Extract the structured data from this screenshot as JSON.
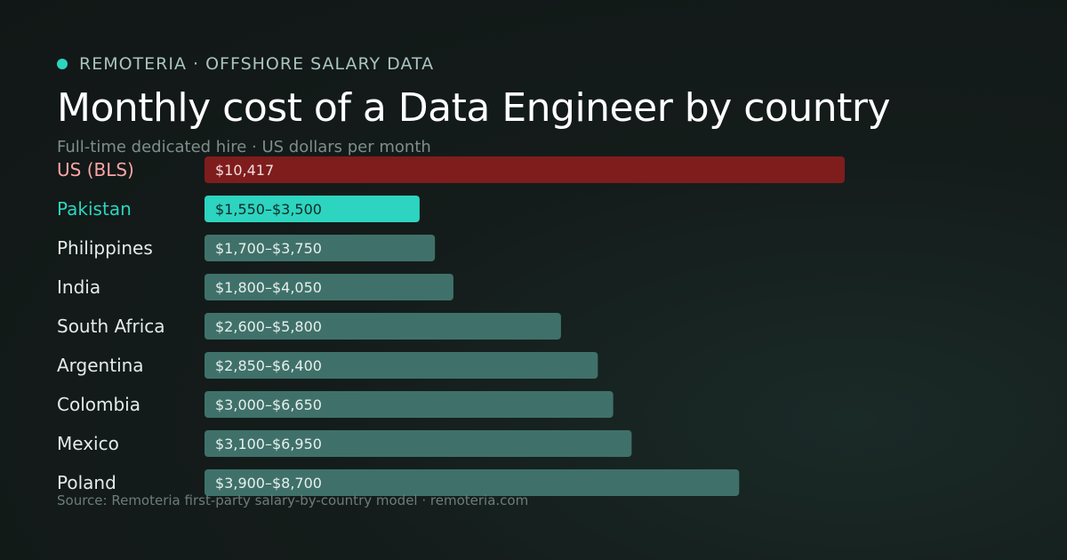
{
  "header": {
    "eyebrow": "REMOTERIA · OFFSHORE SALARY DATA",
    "title": "Monthly cost of a Data Engineer by country",
    "subtitle": "Full-time dedicated hire · US dollars per month"
  },
  "footer": {
    "source": "Source: Remoteria first-party salary-by-country model · remoteria.com"
  },
  "colors": {
    "accent": "#2dd4bf",
    "us_bar": "#7f1d1d",
    "us_label": "#fca5a5",
    "default_bar": "#3f716a",
    "highlight_bar": "#2dd4bf",
    "highlight_label": "#2dd4bf",
    "default_label": "#e5ebe9"
  },
  "chart_data": {
    "type": "bar",
    "orientation": "horizontal",
    "title": "Monthly cost of a Data Engineer by country",
    "subtitle": "Full-time dedicated hire · US dollars per month",
    "unit": "US dollars per month",
    "categories": [
      "US (BLS)",
      "Pakistan",
      "Philippines",
      "India",
      "South Africa",
      "Argentina",
      "Colombia",
      "Mexico",
      "Poland"
    ],
    "low": [
      10417,
      1550,
      1700,
      1800,
      2600,
      2850,
      3000,
      3100,
      3900
    ],
    "high": [
      10417,
      3500,
      3750,
      4050,
      5800,
      6400,
      6650,
      6950,
      8700
    ],
    "labels": [
      "$10,417",
      "$1,550–$3,500",
      "$1,700–$3,750",
      "$1,800–$4,050",
      "$2,600–$5,800",
      "$2,850–$6,400",
      "$3,000–$6,650",
      "$3,100–$6,950",
      "$3,900–$8,700"
    ],
    "styles": [
      "us",
      "highlight",
      "default",
      "default",
      "default",
      "default",
      "default",
      "default",
      "default"
    ],
    "xlim": [
      0,
      10417
    ],
    "grid": false,
    "legend": "none"
  }
}
